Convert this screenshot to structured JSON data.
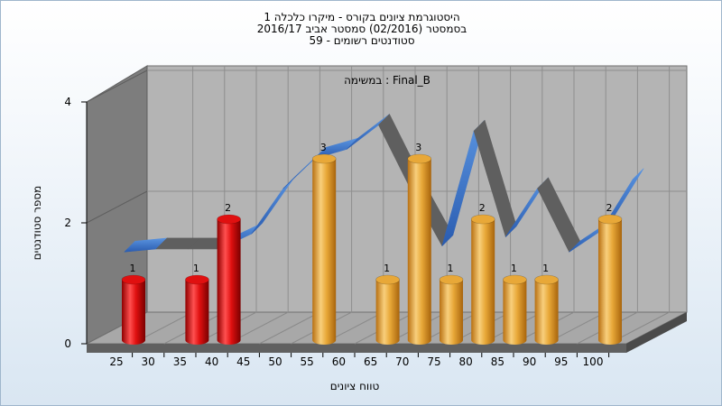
{
  "title": {
    "line1": "היסטוגרמת ציונים בקורס - מיקרו כלכלה 1",
    "line2": "בסמסטר  (02/2016)  סמסטר אביב 2016/17",
    "line3": "סטודנטים רשומים - 59"
  },
  "chart_data": {
    "type": "bar",
    "subtitle": "במשימה : Final_B",
    "xlabel": "טווח ציונים",
    "ylabel": "מספר סטודנטים",
    "x_ticks": [
      "25",
      "30",
      "35",
      "40",
      "45",
      "50",
      "55",
      "60",
      "65",
      "70",
      "75",
      "80",
      "85",
      "90",
      "95",
      "100"
    ],
    "y_ticks": [
      "0",
      "2",
      "4"
    ],
    "ylim": [
      0,
      4
    ],
    "grid": true,
    "bars": [
      {
        "x": 25,
        "value": 1,
        "label": "1",
        "color": "#e01010"
      },
      {
        "x": 35,
        "value": 1,
        "label": "1",
        "color": "#e01010"
      },
      {
        "x": 40,
        "value": 2,
        "label": "2",
        "color": "#e01010"
      },
      {
        "x": 55,
        "value": 3,
        "label": "3",
        "color": "#e8a838"
      },
      {
        "x": 65,
        "value": 1,
        "label": "1",
        "color": "#e8a838"
      },
      {
        "x": 70,
        "value": 3,
        "label": "3",
        "color": "#e8a838"
      },
      {
        "x": 75,
        "value": 1,
        "label": "1",
        "color": "#e8a838"
      },
      {
        "x": 80,
        "value": 2,
        "label": "2",
        "color": "#e8a838"
      },
      {
        "x": 85,
        "value": 1,
        "label": "1",
        "color": "#e8a838"
      },
      {
        "x": 90,
        "value": 1,
        "label": "1",
        "color": "#e8a838"
      },
      {
        "x": 100,
        "value": 2,
        "label": "2",
        "color": "#e8a838"
      }
    ],
    "curve": {
      "x": [
        22,
        27,
        32,
        37,
        42,
        47,
        52,
        57,
        62,
        67,
        72,
        77,
        82,
        87,
        92,
        97,
        102
      ],
      "y": [
        1.25,
        1.3,
        1.3,
        1.3,
        1.55,
        2.3,
        2.8,
        2.95,
        3.35,
        2.3,
        1.35,
        3.25,
        1.5,
        2.3,
        1.25,
        1.6,
        2.45
      ]
    },
    "colors": {
      "red_bar": "#e01010",
      "orange_bar": "#e8a838",
      "ribbon_front": "#3a74c8",
      "ribbon_back": "#666666",
      "back_wall": "#b4b4b4",
      "side_wall": "#7d7d7d",
      "floor": "#a8a8a8"
    }
  }
}
